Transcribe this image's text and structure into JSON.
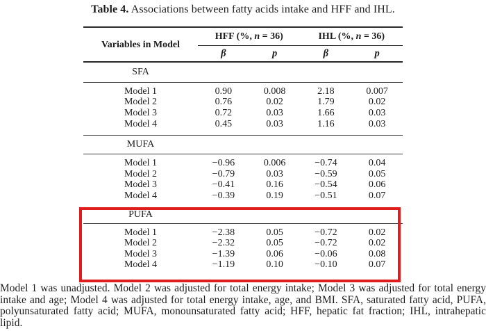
{
  "title": {
    "bold": "Table 4.",
    "rest": " Associations between fatty acids intake and HFF and IHL."
  },
  "colors": {
    "highlight_red": "#e01d1d",
    "text": "#1c1c1c",
    "rule": "#2a2a2a"
  },
  "table": {
    "variables_header": "Variables in Model",
    "groups": [
      {
        "prefix": "HFF (%, ",
        "n": "n",
        "suffix": " = 36)"
      },
      {
        "prefix": "IHL (%, ",
        "n": "n",
        "suffix": " = 36)"
      }
    ],
    "stat_headers": [
      "β",
      "p",
      "β",
      "p"
    ],
    "sections": [
      {
        "name": "SFA",
        "highlighted": false,
        "rows": [
          {
            "label": "Model 1",
            "values": [
              "0.90",
              "0.008",
              "2.18",
              "0.007"
            ]
          },
          {
            "label": "Model 2",
            "values": [
              "0.76",
              "0.02",
              "1.79",
              "0.02"
            ]
          },
          {
            "label": "Model 3",
            "values": [
              "0.72",
              "0.03",
              "1.66",
              "0.03"
            ]
          },
          {
            "label": "Model 4",
            "values": [
              "0.45",
              "0.03",
              "1.16",
              "0.03"
            ]
          }
        ]
      },
      {
        "name": "MUFA",
        "highlighted": false,
        "rows": [
          {
            "label": "Model 1",
            "values": [
              "−0.96",
              "0.006",
              "−0.74",
              "0.04"
            ]
          },
          {
            "label": "Model 2",
            "values": [
              "−0.79",
              "0.03",
              "−0.59",
              "0.05"
            ]
          },
          {
            "label": "Model 3",
            "values": [
              "−0.41",
              "0.16",
              "−0.54",
              "0.06"
            ]
          },
          {
            "label": "Model 4",
            "values": [
              "−0.39",
              "0.19",
              "−0.51",
              "0.07"
            ]
          }
        ]
      },
      {
        "name": "PUFA",
        "highlighted": true,
        "rows": [
          {
            "label": "Model 1",
            "values": [
              "−2.38",
              "0.05",
              "−0.72",
              "0.02"
            ]
          },
          {
            "label": "Model 2",
            "values": [
              "−2.32",
              "0.05",
              "−0.72",
              "0.02"
            ]
          },
          {
            "label": "Model 3",
            "values": [
              "−1.39",
              "0.06",
              "−0.06",
              "0.08"
            ]
          },
          {
            "label": "Model 4",
            "values": [
              "−1.19",
              "0.10",
              "−0.10",
              "0.07"
            ]
          }
        ]
      }
    ]
  },
  "footnote": "Model 1 was unadjusted.  Model 2 was adjusted for total energy intake; Model 3 was adjusted for total energy intake and age; Model 4 was adjusted for total energy intake, age, and BMI. SFA, saturated fatty acid, PUFA, polyunsaturated fatty acid; MUFA, monounsaturated fatty acid; HFF, hepatic fat fraction; IHL, intrahepatic lipid."
}
